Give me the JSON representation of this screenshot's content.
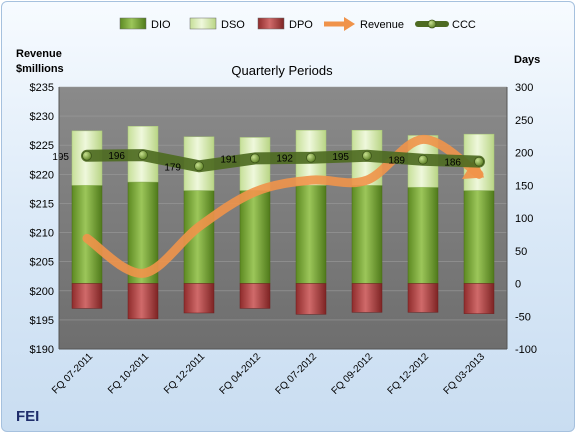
{
  "chart_data": {
    "type": "bar",
    "title": "Quarterly Periods",
    "company": "FEI",
    "left_axis_label": [
      "Revenue",
      "$millions"
    ],
    "right_axis_label": "Days",
    "left_ylim": [
      190,
      235
    ],
    "left_ticks": [
      "$190",
      "$195",
      "$200",
      "$205",
      "$210",
      "$215",
      "$220",
      "$225",
      "$230",
      "$235"
    ],
    "right_ylim": [
      -100,
      300
    ],
    "right_ticks": [
      "-100",
      "-50",
      "0",
      "50",
      "100",
      "150",
      "200",
      "250",
      "300"
    ],
    "categories": [
      "FQ 07-2011",
      "FQ 10-2011",
      "FQ 12-2011",
      "FQ 04-2012",
      "FQ 07-2012",
      "FQ 09-2012",
      "FQ 12-2012",
      "FQ 03-2013"
    ],
    "legend": [
      "DIO",
      "DSO",
      "DPO",
      "Revenue",
      "CCC"
    ],
    "series": [
      {
        "name": "DIO",
        "axis": "right",
        "values": [
          150,
          155,
          142,
          142,
          150,
          150,
          147,
          142
        ]
      },
      {
        "name": "DSO",
        "axis": "right",
        "values": [
          83,
          85,
          82,
          81,
          84,
          84,
          79,
          86
        ]
      },
      {
        "name": "DPO",
        "axis": "right",
        "values": [
          -38,
          -54,
          -45,
          -38,
          -47,
          -44,
          -44,
          -46
        ]
      },
      {
        "name": "Revenue",
        "axis": "left",
        "values": [
          209,
          203,
          211,
          217,
          219,
          219,
          226,
          220
        ]
      },
      {
        "name": "CCC",
        "axis": "right",
        "values": [
          195,
          196,
          179,
          191,
          192,
          195,
          189,
          186
        ]
      }
    ],
    "ccc_labels": [
      "195",
      "196",
      "179",
      "191",
      "192",
      "195",
      "189",
      "186"
    ],
    "colors": {
      "DIO": "#7da33a",
      "DSO": "#d9ecb5",
      "DPO": "#b54a4a",
      "Revenue": "#f0934a",
      "CCC": "#4e6b22",
      "plot_bg": "#7f7f7f"
    }
  }
}
